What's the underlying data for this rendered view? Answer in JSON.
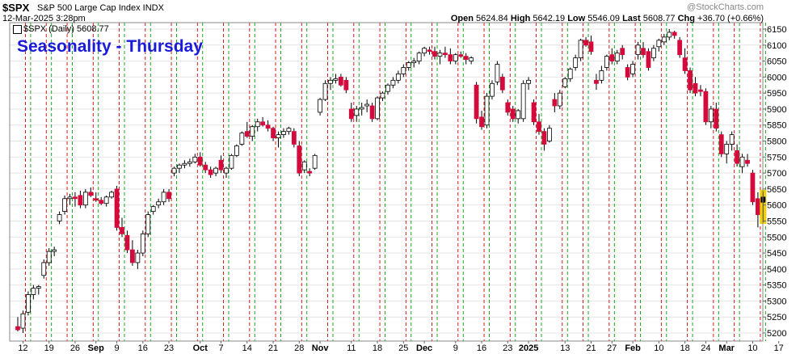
{
  "header": {
    "symbol": "$SPX",
    "description": "S&P 500 Large Cap Index INDX",
    "datetime": "12-Mar-2025 3:28pm",
    "legend": "$SPX (Daily) 5608.77",
    "open_label": "Open",
    "open": "5624.84",
    "high_label": "High",
    "high": "5642.19",
    "low_label": "Low",
    "low": "5546.09",
    "last_label": "Last",
    "last": "5608.77",
    "chg_label": "Chg",
    "chg": "+36.70 (+0.66%)",
    "watermark": "@StockCharts.com"
  },
  "chart_data": {
    "type": "candlestick",
    "title": "Seasonality - Thursday",
    "y_ticks": [
      5200,
      5250,
      5300,
      5350,
      5400,
      5450,
      5500,
      5550,
      5600,
      5650,
      5700,
      5750,
      5800,
      5850,
      5900,
      5950,
      6000,
      6050,
      6100,
      6150
    ],
    "ylim": [
      5180,
      6160
    ],
    "x_labels": [
      {
        "label": "12",
        "bold": false,
        "idx": 1
      },
      {
        "label": "19",
        "bold": false,
        "idx": 6
      },
      {
        "label": "26",
        "bold": false,
        "idx": 11
      },
      {
        "label": "Sep",
        "bold": true,
        "idx": 15
      },
      {
        "label": "9",
        "bold": false,
        "idx": 19
      },
      {
        "label": "16",
        "bold": false,
        "idx": 24
      },
      {
        "label": "23",
        "bold": false,
        "idx": 29
      },
      {
        "label": "Oct",
        "bold": true,
        "idx": 35
      },
      {
        "label": "7",
        "bold": false,
        "idx": 39
      },
      {
        "label": "14",
        "bold": false,
        "idx": 44
      },
      {
        "label": "21",
        "bold": false,
        "idx": 49
      },
      {
        "label": "28",
        "bold": false,
        "idx": 54
      },
      {
        "label": "Nov",
        "bold": true,
        "idx": 58
      },
      {
        "label": "11",
        "bold": false,
        "idx": 64
      },
      {
        "label": "18",
        "bold": false,
        "idx": 69
      },
      {
        "label": "25",
        "bold": false,
        "idx": 74
      },
      {
        "label": "Dec",
        "bold": true,
        "idx": 78
      },
      {
        "label": "9",
        "bold": false,
        "idx": 84
      },
      {
        "label": "16",
        "bold": false,
        "idx": 89
      },
      {
        "label": "23",
        "bold": false,
        "idx": 94
      },
      {
        "label": "2025",
        "bold": true,
        "idx": 98
      },
      {
        "label": "13",
        "bold": false,
        "idx": 105
      },
      {
        "label": "21",
        "bold": false,
        "idx": 110
      },
      {
        "label": "27",
        "bold": false,
        "idx": 114
      },
      {
        "label": "Feb",
        "bold": true,
        "idx": 118
      },
      {
        "label": "10",
        "bold": false,
        "idx": 123
      },
      {
        "label": "18",
        "bold": false,
        "idx": 128
      },
      {
        "label": "24",
        "bold": false,
        "idx": 132
      },
      {
        "label": "Mar",
        "bold": true,
        "idx": 136
      },
      {
        "label": "10",
        "bold": false,
        "idx": 141
      },
      {
        "label": "17",
        "bold": false,
        "idx": 146
      }
    ],
    "series": [
      {
        "values": [
          [
            5220,
            5250,
            5205,
            5210
          ],
          [
            5215,
            5270,
            5200,
            5260
          ],
          [
            5265,
            5330,
            5255,
            5320
          ],
          [
            5320,
            5350,
            5305,
            5340
          ],
          [
            5340,
            5350,
            5320,
            5345
          ],
          [
            5380,
            5430,
            5370,
            5420
          ],
          [
            5420,
            5465,
            5410,
            5455
          ],
          [
            5455,
            5470,
            5440,
            5460
          ],
          [
            5550,
            5580,
            5540,
            5570
          ],
          [
            5580,
            5630,
            5570,
            5620
          ],
          [
            5620,
            5635,
            5600,
            5625
          ],
          [
            5625,
            5640,
            5595,
            5620
          ],
          [
            5630,
            5645,
            5590,
            5600
          ],
          [
            5600,
            5650,
            5590,
            5640
          ],
          [
            5640,
            5655,
            5625,
            5630
          ],
          [
            5620,
            5640,
            5610,
            5615
          ],
          [
            5615,
            5625,
            5600,
            5605
          ],
          [
            5605,
            5630,
            5595,
            5625
          ],
          [
            5625,
            5645,
            5620,
            5640
          ],
          [
            5650,
            5660,
            5520,
            5530
          ],
          [
            5530,
            5560,
            5500,
            5510
          ],
          [
            5505,
            5520,
            5450,
            5460
          ],
          [
            5460,
            5490,
            5410,
            5420
          ],
          [
            5420,
            5460,
            5400,
            5450
          ],
          [
            5450,
            5520,
            5440,
            5510
          ],
          [
            5510,
            5580,
            5500,
            5570
          ],
          [
            5580,
            5600,
            5570,
            5595
          ],
          [
            5600,
            5620,
            5590,
            5610
          ],
          [
            5610,
            5650,
            5600,
            5640
          ],
          [
            5640,
            5650,
            5610,
            5620
          ],
          [
            5700,
            5720,
            5690,
            5715
          ],
          [
            5715,
            5730,
            5700,
            5725
          ],
          [
            5725,
            5740,
            5715,
            5730
          ],
          [
            5730,
            5745,
            5720,
            5735
          ],
          [
            5735,
            5760,
            5730,
            5750
          ],
          [
            5750,
            5765,
            5720,
            5725
          ],
          [
            5725,
            5735,
            5700,
            5710
          ],
          [
            5710,
            5720,
            5685,
            5695
          ],
          [
            5700,
            5720,
            5690,
            5715
          ],
          [
            5740,
            5755,
            5700,
            5710
          ],
          [
            5700,
            5720,
            5685,
            5715
          ],
          [
            5715,
            5760,
            5710,
            5755
          ],
          [
            5755,
            5790,
            5750,
            5785
          ],
          [
            5790,
            5830,
            5785,
            5825
          ],
          [
            5830,
            5860,
            5810,
            5815
          ],
          [
            5815,
            5850,
            5800,
            5845
          ],
          [
            5845,
            5870,
            5830,
            5860
          ],
          [
            5860,
            5875,
            5845,
            5850
          ],
          [
            5850,
            5865,
            5830,
            5840
          ],
          [
            5840,
            5845,
            5800,
            5810
          ],
          [
            5810,
            5830,
            5780,
            5820
          ],
          [
            5820,
            5840,
            5810,
            5830
          ],
          [
            5830,
            5845,
            5820,
            5840
          ],
          [
            5830,
            5840,
            5780,
            5790
          ],
          [
            5785,
            5800,
            5690,
            5700
          ],
          [
            5710,
            5740,
            5700,
            5735
          ],
          [
            5705,
            5715,
            5690,
            5700
          ],
          [
            5715,
            5760,
            5710,
            5755
          ],
          [
            5890,
            5935,
            5880,
            5930
          ],
          [
            5930,
            5990,
            5925,
            5980
          ],
          [
            5980,
            6000,
            5960,
            5990
          ],
          [
            5990,
            6010,
            5980,
            5995
          ],
          [
            6000,
            6010,
            5970,
            5975
          ],
          [
            5990,
            6000,
            5950,
            5960
          ],
          [
            5900,
            5920,
            5860,
            5870
          ],
          [
            5880,
            5910,
            5860,
            5900
          ],
          [
            5900,
            5920,
            5880,
            5905
          ],
          [
            5910,
            5930,
            5890,
            5915
          ],
          [
            5910,
            5920,
            5860,
            5870
          ],
          [
            5870,
            5940,
            5865,
            5935
          ],
          [
            5935,
            5955,
            5925,
            5950
          ],
          [
            5955,
            5980,
            5945,
            5975
          ],
          [
            5975,
            6000,
            5965,
            5990
          ],
          [
            5990,
            6020,
            5980,
            6010
          ],
          [
            6010,
            6040,
            6000,
            6030
          ],
          [
            6030,
            6050,
            6020,
            6045
          ],
          [
            6045,
            6060,
            6030,
            6050
          ],
          [
            6050,
            6080,
            6040,
            6075
          ],
          [
            6075,
            6095,
            6065,
            6090
          ],
          [
            6085,
            6095,
            6070,
            6080
          ],
          [
            6080,
            6095,
            6055,
            6065
          ],
          [
            6065,
            6085,
            6040,
            6075
          ],
          [
            6075,
            6095,
            6060,
            6070
          ],
          [
            6070,
            6090,
            6040,
            6050
          ],
          [
            6050,
            6075,
            6040,
            6070
          ],
          [
            6070,
            6080,
            6060,
            6065
          ],
          [
            6065,
            6075,
            6040,
            6055
          ],
          [
            6050,
            6065,
            6040,
            6060
          ],
          [
            5975,
            5985,
            5855,
            5870
          ],
          [
            5875,
            5895,
            5835,
            5845
          ],
          [
            5850,
            5950,
            5840,
            5940
          ],
          [
            5940,
            5990,
            5930,
            5980
          ],
          [
            5985,
            6050,
            5975,
            6040
          ],
          [
            6000,
            6010,
            5950,
            5960
          ],
          [
            5920,
            5930,
            5880,
            5890
          ],
          [
            5900,
            5910,
            5860,
            5870
          ],
          [
            5870,
            5900,
            5855,
            5895
          ],
          [
            5870,
            5990,
            5860,
            5980
          ],
          [
            5980,
            6000,
            5960,
            5990
          ],
          [
            5920,
            5930,
            5850,
            5860
          ],
          [
            5860,
            5885,
            5820,
            5830
          ],
          [
            5830,
            5840,
            5770,
            5790
          ],
          [
            5800,
            5850,
            5795,
            5840
          ],
          [
            5930,
            5950,
            5890,
            5910
          ],
          [
            5910,
            5960,
            5900,
            5950
          ],
          [
            5970,
            6000,
            5965,
            5995
          ],
          [
            5995,
            6030,
            5985,
            6025
          ],
          [
            6030,
            6070,
            6020,
            6060
          ],
          [
            6060,
            6120,
            6050,
            6115
          ],
          [
            6115,
            6125,
            6095,
            6100
          ],
          [
            6110,
            6130,
            6070,
            6080
          ],
          [
            5990,
            6010,
            5960,
            5980
          ],
          [
            5990,
            6035,
            5980,
            6020
          ],
          [
            6030,
            6070,
            6020,
            6065
          ],
          [
            6070,
            6090,
            6040,
            6050
          ],
          [
            6050,
            6085,
            6040,
            6075
          ],
          [
            6090,
            6100,
            6055,
            6070
          ],
          [
            6030,
            6040,
            5990,
            6000
          ],
          [
            6010,
            6050,
            6000,
            6040
          ],
          [
            6070,
            6110,
            6055,
            6100
          ],
          [
            6090,
            6110,
            6060,
            6070
          ],
          [
            6080,
            6090,
            6020,
            6030
          ],
          [
            6060,
            6100,
            6050,
            6090
          ],
          [
            6095,
            6120,
            6080,
            6115
          ],
          [
            6110,
            6135,
            6100,
            6125
          ],
          [
            6125,
            6150,
            6115,
            6140
          ],
          [
            6140,
            6145,
            6120,
            6130
          ],
          [
            6115,
            6125,
            6060,
            6070
          ],
          [
            6060,
            6090,
            6010,
            6020
          ],
          [
            6020,
            6030,
            5950,
            5960
          ],
          [
            5980,
            6000,
            5940,
            5950
          ],
          [
            5960,
            5975,
            5940,
            5955
          ],
          [
            5955,
            5965,
            5850,
            5860
          ],
          [
            5860,
            5910,
            5840,
            5900
          ],
          [
            5900,
            5920,
            5830,
            5840
          ],
          [
            5820,
            5830,
            5750,
            5760
          ],
          [
            5760,
            5800,
            5730,
            5790
          ],
          [
            5790,
            5830,
            5770,
            5820
          ],
          [
            5770,
            5790,
            5720,
            5730
          ],
          [
            5720,
            5760,
            5700,
            5750
          ],
          [
            5740,
            5760,
            5720,
            5730
          ],
          [
            5700,
            5710,
            5600,
            5610
          ],
          [
            5620,
            5640,
            5530,
            5570
          ],
          [
            5624.84,
            5642.19,
            5546.09,
            5608.77
          ]
        ]
      }
    ],
    "thursday_idx": [
      1,
      5,
      9,
      14,
      19,
      24,
      29,
      34,
      39,
      44,
      49,
      54,
      59,
      64,
      69,
      74,
      79,
      84,
      89,
      94,
      99,
      104,
      108,
      113,
      118,
      123,
      128,
      133,
      137,
      142
    ],
    "friday_idx": [
      2,
      6,
      10,
      15,
      20,
      25,
      30,
      35,
      40,
      45,
      50,
      55,
      60,
      65,
      70,
      75,
      80,
      85,
      90,
      95,
      100,
      105,
      109,
      114,
      119,
      124,
      129,
      134,
      138,
      143
    ],
    "colors": {
      "up": "#ffffff",
      "down": "#d40a3c",
      "outline": "#000000",
      "thursday_line": "#d40000",
      "friday_line": "#00a000",
      "highlight": "#f2d000",
      "grid": "#e4e4e4",
      "title": "#1a1adb"
    }
  }
}
